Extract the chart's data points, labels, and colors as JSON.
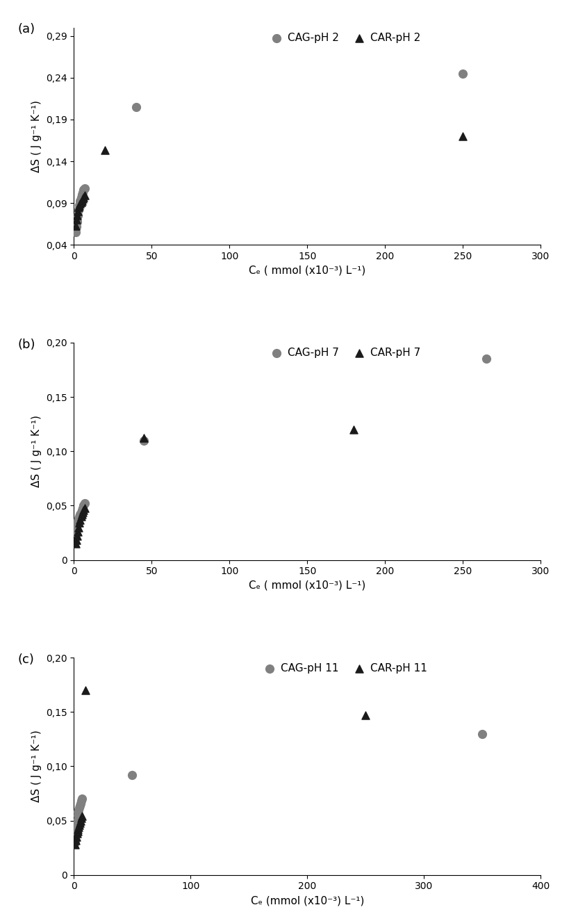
{
  "panel_a": {
    "title_label": "(a)",
    "CAG_x": [
      1,
      1.5,
      2,
      2.5,
      3,
      3.5,
      4,
      4.5,
      5,
      5.5,
      6,
      7,
      40,
      250
    ],
    "CAG_y": [
      0.055,
      0.062,
      0.068,
      0.075,
      0.082,
      0.088,
      0.093,
      0.097,
      0.1,
      0.103,
      0.106,
      0.108,
      0.205,
      0.245
    ],
    "CAR_x": [
      1,
      1.5,
      2,
      2.5,
      3,
      3.5,
      4,
      4.5,
      5,
      5.5,
      6,
      7,
      20,
      250
    ],
    "CAR_y": [
      0.063,
      0.07,
      0.075,
      0.08,
      0.085,
      0.087,
      0.089,
      0.091,
      0.093,
      0.095,
      0.097,
      0.099,
      0.153,
      0.17
    ],
    "legend_CAG": "CAG-pH 2",
    "legend_CAR": "CAR-pH 2",
    "ylabel": "ΔS ( J g⁻¹ K⁻¹)",
    "xlabel": "Cₑ ( mmol (x10⁻³) L⁻¹)",
    "xlim": [
      0,
      300
    ],
    "ylim": [
      0.04,
      0.3
    ],
    "yticks": [
      0.04,
      0.09,
      0.14,
      0.19,
      0.24,
      0.29
    ],
    "xticks": [
      0,
      50,
      100,
      150,
      200,
      250,
      300
    ],
    "CAG_trend_range": [
      1,
      280
    ],
    "CAR_trend_range": [
      1,
      280
    ]
  },
  "panel_b": {
    "title_label": "(b)",
    "CAG_x": [
      1,
      1.5,
      2,
      2.5,
      3,
      3.5,
      4,
      4.5,
      5,
      5.5,
      6,
      7,
      45,
      265
    ],
    "CAG_y": [
      0.025,
      0.03,
      0.033,
      0.036,
      0.038,
      0.04,
      0.042,
      0.044,
      0.046,
      0.048,
      0.05,
      0.052,
      0.11,
      0.185
    ],
    "CAR_x": [
      1,
      1.5,
      2,
      2.5,
      3,
      3.5,
      4,
      4.5,
      5,
      5.5,
      6,
      7,
      45,
      180
    ],
    "CAR_y": [
      0.015,
      0.018,
      0.022,
      0.026,
      0.03,
      0.034,
      0.037,
      0.04,
      0.042,
      0.044,
      0.046,
      0.048,
      0.112,
      0.12
    ],
    "legend_CAG": "CAG-pH 7",
    "legend_CAR": "CAR-pH 7",
    "ylabel": "ΔS ( J g⁻¹ K⁻¹)",
    "xlabel": "Cₑ ( mmol (x10⁻³) L⁻¹)",
    "xlim": [
      0,
      300
    ],
    "ylim": [
      0,
      0.2
    ],
    "yticks": [
      0,
      0.05,
      0.1,
      0.15,
      0.2
    ],
    "xticks": [
      0,
      50,
      100,
      150,
      200,
      250,
      300
    ],
    "CAG_trend_range": [
      1,
      280
    ],
    "CAR_trend_range": [
      1,
      280
    ]
  },
  "panel_c": {
    "title_label": "(c)",
    "CAG_x": [
      1,
      1.5,
      2,
      2.5,
      3,
      3.5,
      4,
      4.5,
      5,
      5.5,
      6,
      7,
      50,
      350
    ],
    "CAG_y": [
      0.03,
      0.038,
      0.045,
      0.05,
      0.055,
      0.058,
      0.06,
      0.062,
      0.064,
      0.066,
      0.068,
      0.07,
      0.092,
      0.13
    ],
    "CAR_x": [
      1,
      1.5,
      2,
      2.5,
      3,
      3.5,
      4,
      4.5,
      5,
      5.5,
      6,
      7,
      10,
      250
    ],
    "CAR_y": [
      0.028,
      0.032,
      0.035,
      0.038,
      0.04,
      0.042,
      0.044,
      0.046,
      0.048,
      0.05,
      0.052,
      0.054,
      0.17,
      0.147
    ],
    "legend_CAG": "CAG-pH 11",
    "legend_CAR": "CAR-pH 11",
    "ylabel": "ΔS ( J g⁻¹ K⁻¹)",
    "xlabel": "Cₑ (mmol (x10⁻³) L⁻¹)",
    "xlim": [
      0,
      400
    ],
    "ylim": [
      0,
      0.2
    ],
    "yticks": [
      0,
      0.05,
      0.1,
      0.15,
      0.2
    ],
    "xticks": [
      0,
      100,
      200,
      300,
      400
    ],
    "CAG_trend_range": [
      1,
      390
    ],
    "CAR_trend_range": [
      1,
      390
    ]
  },
  "CAG_color": "#808080",
  "CAR_color": "#1a1a1a",
  "CAG_trend_color": "#999999",
  "CAR_trend_color": "#111111",
  "marker_size_circle": 72,
  "marker_size_triangle": 64,
  "trend_linewidth": 1.8,
  "label_fontsize": 11,
  "tick_fontsize": 10,
  "panel_label_fontsize": 13
}
